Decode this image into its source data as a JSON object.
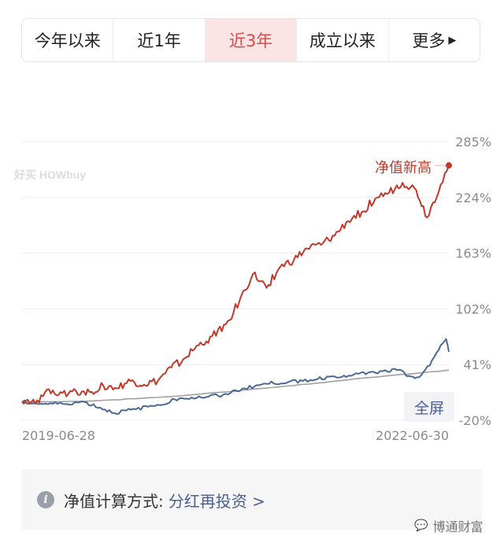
{
  "tabs": [
    {
      "label": "今年以来",
      "active": false
    },
    {
      "label": "近1年",
      "active": false
    },
    {
      "label": "近3年",
      "active": true
    },
    {
      "label": "成立以来",
      "active": false
    },
    {
      "label": "更多",
      "active": false
    }
  ],
  "tabs_more_arrow": "▶",
  "colors": {
    "fund": "#c0392b",
    "benchmark": "#4a6a94",
    "index": "#a0a0a0",
    "accent": "#d84b4b",
    "link": "#4a5e95"
  },
  "chart_logo": "好买 HOWbuy",
  "chart_annotation": "净值新高",
  "fullscreen_label": "全屏",
  "info": {
    "icon": "info-icon",
    "label": "净值计算方式:",
    "link": "分红再投资 >"
  },
  "watermark": {
    "icon": "wechat-icon",
    "text": "博通财富"
  },
  "chart_data": {
    "type": "line",
    "y_unit": "%",
    "y_ticks": [
      285,
      224,
      163,
      102,
      41,
      -20
    ],
    "ylim": [
      -20,
      285
    ],
    "grid": true,
    "x_labels": [
      "2019-06-28",
      "2022-06-30"
    ],
    "x_range": [
      "2019-06-28",
      "2022-06-30"
    ],
    "series": [
      {
        "role": "fund",
        "color": "#c0392b",
        "points": [
          [
            "2019-06-28",
            0
          ],
          [
            "2019-08-01",
            -2
          ],
          [
            "2019-09-05",
            14
          ],
          [
            "2019-10-10",
            10
          ],
          [
            "2019-11-14",
            12
          ],
          [
            "2019-12-19",
            11
          ],
          [
            "2020-01-23",
            18
          ],
          [
            "2020-02-27",
            15
          ],
          [
            "2020-04-02",
            23
          ],
          [
            "2020-05-07",
            19
          ],
          [
            "2020-06-11",
            23
          ],
          [
            "2020-07-16",
            38
          ],
          [
            "2020-08-20",
            48
          ],
          [
            "2020-09-24",
            62
          ],
          [
            "2020-10-29",
            72
          ],
          [
            "2020-12-03",
            85
          ],
          [
            "2021-01-07",
            110
          ],
          [
            "2021-02-11",
            140
          ],
          [
            "2021-03-18",
            125
          ],
          [
            "2021-04-22",
            148
          ],
          [
            "2021-05-27",
            155
          ],
          [
            "2021-07-01",
            168
          ],
          [
            "2021-08-05",
            172
          ],
          [
            "2021-09-09",
            182
          ],
          [
            "2021-10-14",
            198
          ],
          [
            "2021-11-18",
            208
          ],
          [
            "2021-12-23",
            223
          ],
          [
            "2022-01-27",
            229
          ],
          [
            "2022-03-03",
            240
          ],
          [
            "2022-04-07",
            232
          ],
          [
            "2022-05-05",
            202
          ],
          [
            "2022-06-09",
            238
          ],
          [
            "2022-06-30",
            259
          ]
        ]
      },
      {
        "role": "benchmark",
        "color": "#4a6a94",
        "points": [
          [
            "2019-06-28",
            0
          ],
          [
            "2019-08-15",
            -2
          ],
          [
            "2019-10-10",
            -2
          ],
          [
            "2019-12-05",
            0
          ],
          [
            "2020-02-20",
            -12
          ],
          [
            "2020-04-16",
            -8
          ],
          [
            "2020-06-11",
            -3
          ],
          [
            "2020-08-06",
            4
          ],
          [
            "2020-10-01",
            5
          ],
          [
            "2020-11-26",
            8
          ],
          [
            "2021-01-21",
            15
          ],
          [
            "2021-03-18",
            20
          ],
          [
            "2021-05-13",
            22
          ],
          [
            "2021-07-08",
            24
          ],
          [
            "2021-09-02",
            28
          ],
          [
            "2021-10-28",
            30
          ],
          [
            "2021-12-23",
            32
          ],
          [
            "2022-02-17",
            35
          ],
          [
            "2022-03-24",
            28
          ],
          [
            "2022-04-14",
            27
          ],
          [
            "2022-05-12",
            40
          ],
          [
            "2022-06-09",
            62
          ],
          [
            "2022-06-23",
            69
          ],
          [
            "2022-06-30",
            55
          ]
        ]
      },
      {
        "role": "index",
        "color": "#a0a0a0",
        "points": [
          [
            "2019-06-28",
            0
          ],
          [
            "2019-12-19",
            1
          ],
          [
            "2020-06-11",
            5
          ],
          [
            "2020-12-03",
            11
          ],
          [
            "2021-05-27",
            18
          ],
          [
            "2021-11-18",
            26
          ],
          [
            "2022-05-12",
            33
          ],
          [
            "2022-06-30",
            35
          ]
        ]
      }
    ]
  }
}
